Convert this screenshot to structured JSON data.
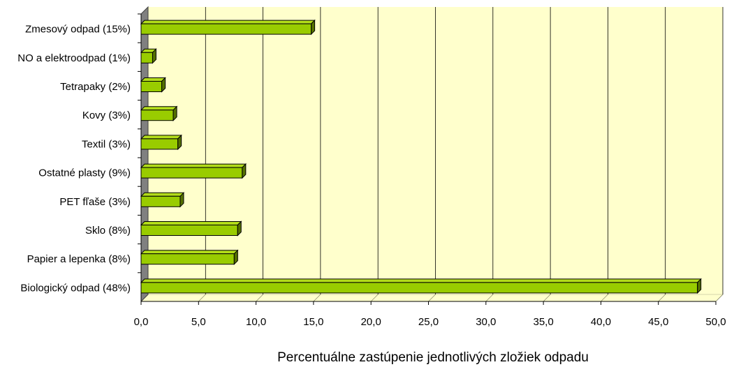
{
  "chart_data": {
    "type": "bar",
    "orientation": "horizontal",
    "three_d": true,
    "categories": [
      "Zmesový odpad (15%)",
      "NO a elektroodpad (1%)",
      "Tetrapaky (2%)",
      "Kovy (3%)",
      "Textil (3%)",
      "Ostatné plasty (9%)",
      "PET fľaše (3%)",
      "Sklo (8%)",
      "Papier a lepenka (8%)",
      "Biologický odpad (48%)"
    ],
    "values": [
      14.8,
      1.0,
      1.8,
      2.8,
      3.2,
      8.8,
      3.4,
      8.4,
      8.1,
      48.4
    ],
    "xlabel": "Percentuálne zastúpenie jednotlivých zložiek odpadu",
    "ylabel": "",
    "title": "",
    "xlim": [
      0,
      50
    ],
    "xticks": [
      "0,0",
      "5,0",
      "10,0",
      "15,0",
      "20,0",
      "25,0",
      "30,0",
      "35,0",
      "40,0",
      "45,0",
      "50,0"
    ],
    "grid": "vertical",
    "legend": "none",
    "colors": {
      "bar_front": "#99cc00",
      "bar_top": "#b3dd1a",
      "bar_side": "#557000",
      "plot_background": "#ffffcc",
      "wall": "#808080",
      "gridline": "#000000"
    }
  }
}
